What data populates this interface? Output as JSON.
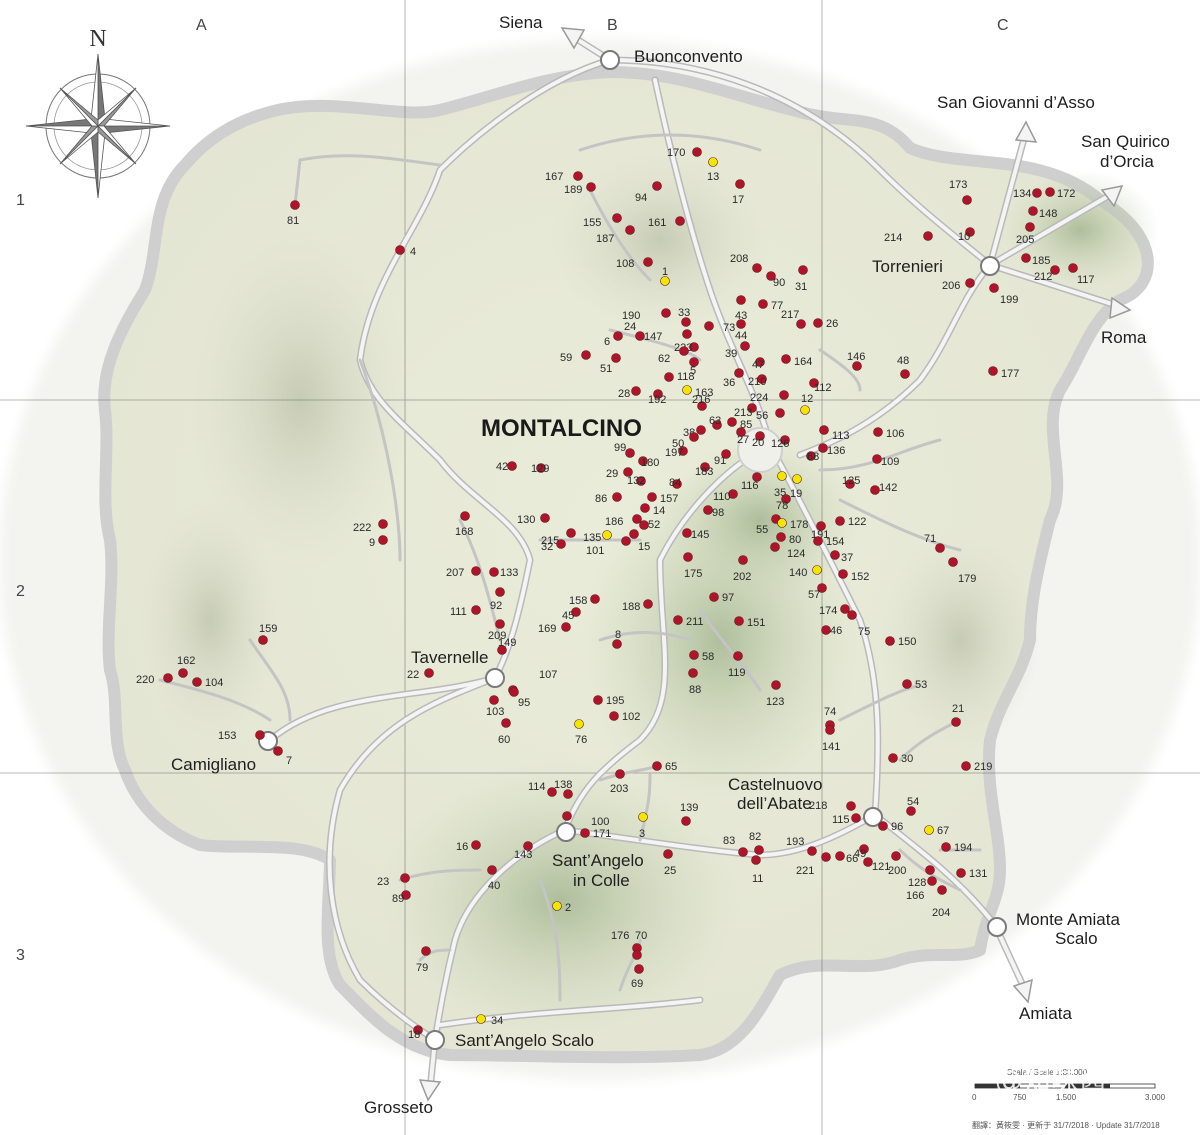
{
  "map": {
    "title": "MONTALCINO",
    "grid_columns": [
      "A",
      "B",
      "C"
    ],
    "grid_rows": [
      "1",
      "2",
      "3"
    ],
    "compass_label": "N",
    "colors": {
      "winery_dot": "#b0142a",
      "highlight_dot": "#f2e600",
      "road": "#d9d9d9",
      "territory": "#e7ead6",
      "hills": "#9fb48c",
      "border": "#c9c9c9"
    },
    "places": [
      {
        "id": "siena",
        "name": "Siena"
      },
      {
        "id": "buonconvento",
        "name": "Buonconvento"
      },
      {
        "id": "san-giovanni",
        "name": "San Giovanni d’Asso"
      },
      {
        "id": "san-quirico-1",
        "name": "San Quirico"
      },
      {
        "id": "san-quirico-2",
        "name": "d’Orcia"
      },
      {
        "id": "torrenieri",
        "name": "Torrenieri"
      },
      {
        "id": "roma",
        "name": "Roma"
      },
      {
        "id": "tavernelle",
        "name": "Tavernelle"
      },
      {
        "id": "camigliano",
        "name": "Camigliano"
      },
      {
        "id": "castelnuovo-1",
        "name": "Castelnuovo"
      },
      {
        "id": "castelnuovo-2",
        "name": "dell’Abate"
      },
      {
        "id": "santangelo-colle-1",
        "name": "Sant’Angelo"
      },
      {
        "id": "santangelo-colle-2",
        "name": "in Colle"
      },
      {
        "id": "monte-amiata-1",
        "name": "Monte Amiata"
      },
      {
        "id": "monte-amiata-2",
        "name": "Scalo"
      },
      {
        "id": "amiata",
        "name": "Amiata"
      },
      {
        "id": "santangelo-scalo",
        "name": "Sant’Angelo Scalo"
      },
      {
        "id": "grosseto",
        "name": "Grosseto"
      }
    ],
    "markers": [
      {
        "label": "170",
        "color": "red"
      },
      {
        "label": "13",
        "color": "yellow"
      },
      {
        "label": "167",
        "color": "red"
      },
      {
        "label": "189",
        "color": "red"
      },
      {
        "label": "94",
        "color": "red"
      },
      {
        "label": "17",
        "color": "red"
      },
      {
        "label": "155",
        "color": "red"
      },
      {
        "label": "187",
        "color": "red"
      },
      {
        "label": "161",
        "color": "red"
      },
      {
        "label": "81",
        "color": "red"
      },
      {
        "label": "4",
        "color": "red"
      },
      {
        "label": "108",
        "color": "red"
      },
      {
        "label": "1",
        "color": "yellow"
      },
      {
        "label": "208",
        "color": "red"
      },
      {
        "label": "90",
        "color": "red"
      },
      {
        "label": "31",
        "color": "red"
      },
      {
        "label": "173",
        "color": "red"
      },
      {
        "label": "134",
        "color": "red"
      },
      {
        "label": "172",
        "color": "red"
      },
      {
        "label": "148",
        "color": "red"
      },
      {
        "label": "214",
        "color": "red"
      },
      {
        "label": "10",
        "color": "red"
      },
      {
        "label": "205",
        "color": "red"
      },
      {
        "label": "185",
        "color": "red"
      },
      {
        "label": "212",
        "color": "red"
      },
      {
        "label": "117",
        "color": "red"
      },
      {
        "label": "206",
        "color": "red"
      },
      {
        "label": "199",
        "color": "red"
      },
      {
        "label": "43",
        "color": "red"
      },
      {
        "label": "77",
        "color": "red"
      },
      {
        "label": "33",
        "color": "red"
      },
      {
        "label": "190",
        "color": "red"
      },
      {
        "label": "24",
        "color": "red"
      },
      {
        "label": "6",
        "color": "red"
      },
      {
        "label": "147",
        "color": "red"
      },
      {
        "label": "73",
        "color": "red"
      },
      {
        "label": "217",
        "color": "red"
      },
      {
        "label": "26",
        "color": "red"
      },
      {
        "label": "44",
        "color": "red"
      },
      {
        "label": "223",
        "color": "red"
      },
      {
        "label": "59",
        "color": "red"
      },
      {
        "label": "51",
        "color": "red"
      },
      {
        "label": "62",
        "color": "red"
      },
      {
        "label": "5",
        "color": "red"
      },
      {
        "label": "39",
        "color": "red"
      },
      {
        "label": "47",
        "color": "red"
      },
      {
        "label": "164",
        "color": "red"
      },
      {
        "label": "146",
        "color": "red"
      },
      {
        "label": "48",
        "color": "red"
      },
      {
        "label": "177",
        "color": "red"
      },
      {
        "label": "118",
        "color": "red"
      },
      {
        "label": "36",
        "color": "red"
      },
      {
        "label": "210",
        "color": "red"
      },
      {
        "label": "28",
        "color": "red"
      },
      {
        "label": "192",
        "color": "red"
      },
      {
        "label": "163",
        "color": "yellow"
      },
      {
        "label": "224",
        "color": "red"
      },
      {
        "label": "112",
        "color": "red"
      },
      {
        "label": "216",
        "color": "red"
      },
      {
        "label": "213",
        "color": "red"
      },
      {
        "label": "12",
        "color": "yellow"
      },
      {
        "label": "56",
        "color": "red"
      },
      {
        "label": "85",
        "color": "red"
      },
      {
        "label": "63",
        "color": "red"
      },
      {
        "label": "38",
        "color": "red"
      },
      {
        "label": "50",
        "color": "red"
      },
      {
        "label": "27",
        "color": "red"
      },
      {
        "label": "20",
        "color": "red"
      },
      {
        "label": "126",
        "color": "red"
      },
      {
        "label": "113",
        "color": "red"
      },
      {
        "label": "106",
        "color": "red"
      },
      {
        "label": "136",
        "color": "red"
      },
      {
        "label": "197",
        "color": "red"
      },
      {
        "label": "91",
        "color": "red"
      },
      {
        "label": "99",
        "color": "red"
      },
      {
        "label": "180",
        "color": "red"
      },
      {
        "label": "183",
        "color": "red"
      },
      {
        "label": "68",
        "color": "red"
      },
      {
        "label": "109",
        "color": "red"
      },
      {
        "label": "42",
        "color": "red"
      },
      {
        "label": "129",
        "color": "red"
      },
      {
        "label": "29",
        "color": "red"
      },
      {
        "label": "132",
        "color": "red"
      },
      {
        "label": "84",
        "color": "red"
      },
      {
        "label": "116",
        "color": "red"
      },
      {
        "label": "35",
        "color": "yellow"
      },
      {
        "label": "19",
        "color": "yellow"
      },
      {
        "label": "125",
        "color": "red"
      },
      {
        "label": "142",
        "color": "red"
      },
      {
        "label": "86",
        "color": "red"
      },
      {
        "label": "157",
        "color": "red"
      },
      {
        "label": "110",
        "color": "red"
      },
      {
        "label": "78",
        "color": "red"
      },
      {
        "label": "14",
        "color": "red"
      },
      {
        "label": "98",
        "color": "red"
      },
      {
        "label": "122",
        "color": "red"
      },
      {
        "label": "168",
        "color": "red"
      },
      {
        "label": "130",
        "color": "red"
      },
      {
        "label": "186",
        "color": "red"
      },
      {
        "label": "52",
        "color": "red"
      },
      {
        "label": "55",
        "color": "red"
      },
      {
        "label": "178",
        "color": "yellow"
      },
      {
        "label": "191",
        "color": "red"
      },
      {
        "label": "222",
        "color": "red"
      },
      {
        "label": "9",
        "color": "red"
      },
      {
        "label": "215",
        "color": "red"
      },
      {
        "label": "135",
        "color": "yellow"
      },
      {
        "label": "32",
        "color": "red"
      },
      {
        "label": "101",
        "color": "red"
      },
      {
        "label": "15",
        "color": "red"
      },
      {
        "label": "145",
        "color": "red"
      },
      {
        "label": "80",
        "color": "red"
      },
      {
        "label": "124",
        "color": "red"
      },
      {
        "label": "154",
        "color": "red"
      },
      {
        "label": "71",
        "color": "red"
      },
      {
        "label": "37",
        "color": "red"
      },
      {
        "label": "207",
        "color": "red"
      },
      {
        "label": "133",
        "color": "red"
      },
      {
        "label": "175",
        "color": "red"
      },
      {
        "label": "202",
        "color": "red"
      },
      {
        "label": "140",
        "color": "yellow"
      },
      {
        "label": "152",
        "color": "red"
      },
      {
        "label": "179",
        "color": "red"
      },
      {
        "label": "111",
        "color": "red"
      },
      {
        "label": "92",
        "color": "red"
      },
      {
        "label": "158",
        "color": "red"
      },
      {
        "label": "188",
        "color": "red"
      },
      {
        "label": "97",
        "color": "red"
      },
      {
        "label": "57",
        "color": "red"
      },
      {
        "label": "45",
        "color": "red"
      },
      {
        "label": "174",
        "color": "red"
      },
      {
        "label": "169",
        "color": "red"
      },
      {
        "label": "211",
        "color": "red"
      },
      {
        "label": "151",
        "color": "red"
      },
      {
        "label": "46",
        "color": "red"
      },
      {
        "label": "75",
        "color": "red"
      },
      {
        "label": "159",
        "color": "red"
      },
      {
        "label": "209",
        "color": "red"
      },
      {
        "label": "8",
        "color": "red"
      },
      {
        "label": "150",
        "color": "red"
      },
      {
        "label": "149",
        "color": "red"
      },
      {
        "label": "58",
        "color": "red"
      },
      {
        "label": "119",
        "color": "red"
      },
      {
        "label": "162",
        "color": "red"
      },
      {
        "label": "220",
        "color": "red"
      },
      {
        "label": "104",
        "color": "red"
      },
      {
        "label": "22",
        "color": "red"
      },
      {
        "label": "88",
        "color": "red"
      },
      {
        "label": "107",
        "color": "red"
      },
      {
        "label": "123",
        "color": "red"
      },
      {
        "label": "53",
        "color": "red"
      },
      {
        "label": "95",
        "color": "red"
      },
      {
        "label": "195",
        "color": "red"
      },
      {
        "label": "103",
        "color": "red"
      },
      {
        "label": "102",
        "color": "red"
      },
      {
        "label": "74",
        "color": "red"
      },
      {
        "label": "21",
        "color": "red"
      },
      {
        "label": "153",
        "color": "red"
      },
      {
        "label": "60",
        "color": "red"
      },
      {
        "label": "76",
        "color": "yellow"
      },
      {
        "label": "141",
        "color": "red"
      },
      {
        "label": "7",
        "color": "red"
      },
      {
        "label": "30",
        "color": "red"
      },
      {
        "label": "219",
        "color": "red"
      },
      {
        "label": "65",
        "color": "red"
      },
      {
        "label": "203",
        "color": "red"
      },
      {
        "label": "114",
        "color": "red"
      },
      {
        "label": "138",
        "color": "red"
      },
      {
        "label": "100",
        "color": "red"
      },
      {
        "label": "139",
        "color": "red"
      },
      {
        "label": "218",
        "color": "red"
      },
      {
        "label": "54",
        "color": "red"
      },
      {
        "label": "171",
        "color": "red"
      },
      {
        "label": "3",
        "color": "yellow"
      },
      {
        "label": "115",
        "color": "red"
      },
      {
        "label": "96",
        "color": "red"
      },
      {
        "label": "67",
        "color": "yellow"
      },
      {
        "label": "16",
        "color": "red"
      },
      {
        "label": "143",
        "color": "red"
      },
      {
        "label": "83",
        "color": "red"
      },
      {
        "label": "82",
        "color": "red"
      },
      {
        "label": "193",
        "color": "red"
      },
      {
        "label": "194",
        "color": "red"
      },
      {
        "label": "66",
        "color": "red"
      },
      {
        "label": "49",
        "color": "red"
      },
      {
        "label": "25",
        "color": "red"
      },
      {
        "label": "221",
        "color": "red"
      },
      {
        "label": "121",
        "color": "red"
      },
      {
        "label": "200",
        "color": "red"
      },
      {
        "label": "40",
        "color": "red"
      },
      {
        "label": "11",
        "color": "red"
      },
      {
        "label": "23",
        "color": "red"
      },
      {
        "label": "89",
        "color": "red"
      },
      {
        "label": "128",
        "color": "red"
      },
      {
        "label": "131",
        "color": "red"
      },
      {
        "label": "166",
        "color": "red"
      },
      {
        "label": "2",
        "color": "yellow"
      },
      {
        "label": "204",
        "color": "red"
      },
      {
        "label": "176",
        "color": "red"
      },
      {
        "label": "70",
        "color": "red"
      },
      {
        "label": "79",
        "color": "red"
      },
      {
        "label": "69",
        "color": "red"
      },
      {
        "label": "34",
        "color": "yellow"
      },
      {
        "label": "18",
        "color": "red"
      }
    ],
    "scale": {
      "label": "Scala / Scale 1:80.000",
      "ticks": [
        "0",
        "750",
        "1.500",
        "3.000"
      ]
    },
    "credit": "翻譯：黃筱雯 · 更新于 31/7/2018 · Update 31/7/2018",
    "watermark": "知乎 @知味酱"
  }
}
